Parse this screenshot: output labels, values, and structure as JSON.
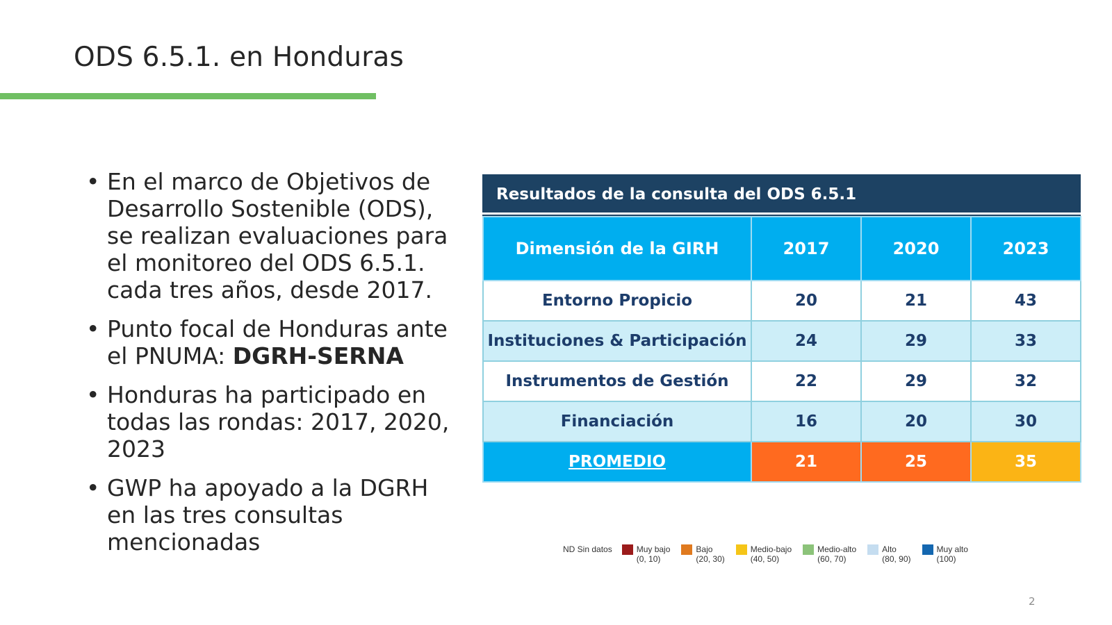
{
  "slide": {
    "title": "ODS 6.5.1. en Honduras",
    "page_number": "2",
    "accent_color": "#70bf63"
  },
  "bullets": [
    {
      "text": "En el marco de Objetivos de Desarrollo Sostenible (ODS), se realizan evaluaciones para el monitoreo del ODS 6.5.1. cada tres años, desde 2017."
    },
    {
      "text": "Punto focal de Honduras ante el PNUMA: ",
      "bold": "DGRH-SERNA"
    },
    {
      "text": "Honduras ha participado en todas las rondas: 2017, 2020, 2023"
    },
    {
      "text": "GWP ha apoyado a la DGRH en las tres consultas mencionadas"
    }
  ],
  "table": {
    "caption": "Resultados de la consulta del ODS 6.5.1",
    "headers": [
      "Dimensión de la GIRH",
      "2017",
      "2020",
      "2023"
    ],
    "rows": [
      [
        "Entorno Propicio",
        "20",
        "21",
        "43"
      ],
      [
        "Instituciones & Participación",
        "24",
        "29",
        "33"
      ],
      [
        "Instrumentos de Gestión",
        "22",
        "29",
        "32"
      ],
      [
        "Financiación",
        "16",
        "20",
        "30"
      ]
    ],
    "average": [
      "PROMEDIO",
      "21",
      "25",
      "35"
    ]
  },
  "legend": {
    "nd": "ND  Sin datos",
    "items": [
      {
        "label": "Muy bajo",
        "range": "(0, 10)",
        "color": "#9b1b1b"
      },
      {
        "label": "Bajo",
        "range": "(20, 30)",
        "color": "#e07a1f"
      },
      {
        "label": "Medio-bajo",
        "range": "(40, 50)",
        "color": "#f5c518"
      },
      {
        "label": "Medio-alto",
        "range": "(60, 70)",
        "color": "#8cc37a"
      },
      {
        "label": "Alto",
        "range": "(80, 90)",
        "color": "#c5ddf0"
      },
      {
        "label": "Muy alto",
        "range": "(100)",
        "color": "#1467b0"
      }
    ]
  }
}
